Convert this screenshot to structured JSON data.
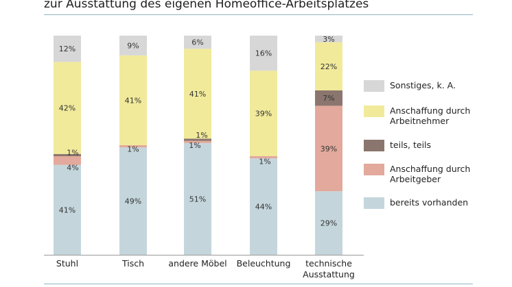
{
  "title": "zur Ausstattung des eigenen Homeoffice-Arbeitsplatzes",
  "chart_data": {
    "type": "bar",
    "stacked": true,
    "categories": [
      "Stuhl",
      "Tisch",
      "andere Möbel",
      "Beleuchtung",
      "technische Ausstattung"
    ],
    "category_lines": [
      [
        "Stuhl"
      ],
      [
        "Tisch"
      ],
      [
        "andere Möbel"
      ],
      [
        "Beleuchtung"
      ],
      [
        "technische",
        "Ausstattung"
      ]
    ],
    "ylim": [
      0,
      100
    ],
    "grid": false,
    "legend_position": "right",
    "series": [
      {
        "name": "bereits vorhanden",
        "color": "#c4d6dc",
        "values": [
          41,
          49,
          51,
          44,
          29
        ],
        "labels": [
          "41%",
          "49%",
          "51%",
          "44%",
          "29%"
        ]
      },
      {
        "name": "Anschaffung durch Arbeitgeber",
        "color": "#e2a99c",
        "values": [
          4,
          1,
          1,
          1,
          39
        ],
        "labels": [
          "4%",
          "1%",
          "1%",
          "1%",
          "39%"
        ]
      },
      {
        "name": "teils, teils",
        "color": "#8a766e",
        "values": [
          1,
          0,
          1,
          0,
          7
        ],
        "labels": [
          "1%",
          "",
          "1%",
          "",
          "7%"
        ]
      },
      {
        "name": "Anschaffung durch Arbeitnehmer",
        "color": "#f1ea9b",
        "values": [
          42,
          41,
          41,
          39,
          22
        ],
        "labels": [
          "42%",
          "41%",
          "41%",
          "39%",
          "22%"
        ]
      },
      {
        "name": "Sonstiges, k. A.",
        "color": "#d7d7d8",
        "values": [
          12,
          9,
          6,
          16,
          3
        ],
        "labels": [
          "12%",
          "9%",
          "6%",
          "16%",
          "3%"
        ]
      }
    ],
    "legend": [
      {
        "label_lines": [
          "Sonstiges, k. A."
        ],
        "color": "#d7d7d8"
      },
      {
        "label_lines": [
          "Anschaffung durch",
          "Arbeitnehmer"
        ],
        "color": "#f1ea9b"
      },
      {
        "label_lines": [
          "teils, teils"
        ],
        "color": "#8a766e"
      },
      {
        "label_lines": [
          "Anschaffung durch",
          "Arbeitgeber"
        ],
        "color": "#e2a99c"
      },
      {
        "label_lines": [
          "bereits vorhanden"
        ],
        "color": "#c4d6dc"
      }
    ]
  }
}
